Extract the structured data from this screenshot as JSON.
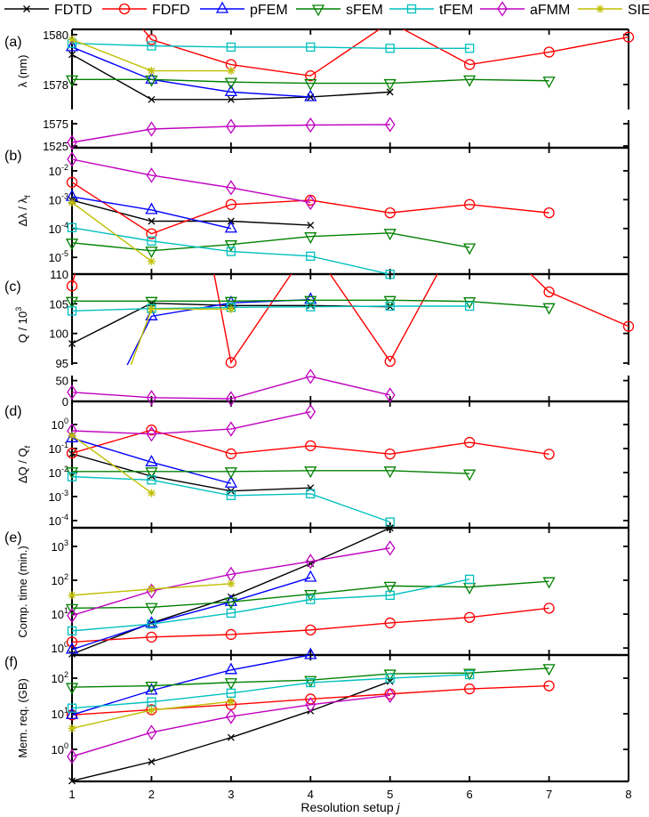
{
  "chart_data": {
    "type": "line",
    "x": [
      1,
      2,
      3,
      4,
      5,
      6,
      7,
      8
    ],
    "xlim": [
      1,
      8
    ],
    "xticks": [
      "1",
      "2",
      "3",
      "4",
      "5",
      "6",
      "7",
      "8"
    ],
    "xlabel": "Resolution setup ",
    "xlabel_var": "j",
    "legend_position": "top",
    "series_meta": [
      {
        "name": "FDTD",
        "color": "#000000",
        "marker": "x"
      },
      {
        "name": "FDFD",
        "color": "#ff0000",
        "marker": "circle"
      },
      {
        "name": "pFEM",
        "color": "#0000ff",
        "marker": "triangle-up"
      },
      {
        "name": "sFEM",
        "color": "#008000",
        "marker": "triangle-down"
      },
      {
        "name": "tFEM",
        "color": "#00bfbf",
        "marker": "square"
      },
      {
        "name": "aFMM",
        "color": "#bf00bf",
        "marker": "diamond"
      },
      {
        "name": "SIE",
        "color": "#bfbf00",
        "marker": "asterisk"
      }
    ],
    "panels": [
      {
        "label": "(a)",
        "ylabel": {
          "main": "λ (nm)"
        },
        "scale": "linear",
        "segments": [
          {
            "ylim": [
              1577,
              1580.21
            ],
            "yticks": [
              1578,
              1580
            ],
            "series": [
              "FDTD",
              "FDFD",
              "pFEM",
              "sFEM",
              "tFEM",
              "SIE"
            ]
          },
          {
            "ylim": [
              1521,
              1583
            ],
            "yticks": [
              1525,
              1575
            ],
            "series": [
              "aFMM"
            ]
          }
        ],
        "values": {
          "FDTD": [
            1579.2,
            1577.4,
            1577.4,
            1577.5,
            1577.7,
            null,
            null,
            null
          ],
          "FDFD": [
            1583.7,
            1579.8,
            1578.8,
            1578.35,
            1580.5,
            1578.8,
            1579.3,
            1579.9
          ],
          "pFEM": [
            1579.5,
            1578.2,
            1577.7,
            1577.5,
            null,
            null,
            null,
            null
          ],
          "sFEM": [
            1578.2,
            1578.2,
            1578.1,
            1578.05,
            1578.05,
            1578.2,
            1578.15,
            null
          ],
          "tFEM": [
            1579.65,
            1579.55,
            1579.5,
            1579.5,
            1579.45,
            1579.45,
            null,
            null
          ],
          "aFMM": [
            1533,
            1563,
            1569,
            1572,
            1573,
            null,
            null,
            null
          ],
          "SIE": [
            1579.8,
            1578.55,
            1578.55,
            null,
            null,
            null,
            null,
            null
          ]
        }
      },
      {
        "label": "(b)",
        "ylabel": {
          "main": "Δλ / λ",
          "sub": "f"
        },
        "scale": "log",
        "segments": [
          {
            "ylim": [
              2.63e-06,
              0.063
            ],
            "yticks": [
              -5,
              -4,
              -3,
              -2
            ],
            "series": [
              "FDTD",
              "FDFD",
              "pFEM",
              "sFEM",
              "tFEM",
              "aFMM",
              "SIE"
            ]
          }
        ],
        "values": {
          "FDTD": [
            0.00095,
            0.00018,
            0.00018,
            0.00013,
            null,
            null,
            null,
            null
          ],
          "FDFD": [
            0.004,
            6.6e-05,
            0.00068,
            0.00096,
            0.00035,
            0.00068,
            0.00035,
            null
          ],
          "pFEM": [
            0.00126,
            0.00044,
            0.0001,
            null,
            null,
            null,
            null,
            null
          ],
          "sFEM": [
            3.2e-05,
            1.7e-05,
            2.8e-05,
            5.3e-05,
            7e-05,
            2.2e-05,
            null,
            null
          ],
          "tFEM": [
            0.000107,
            3.7e-05,
            1.6e-05,
            1.1e-05,
            2.6e-06,
            null,
            null,
            null
          ],
          "aFMM": [
            0.025,
            0.007,
            0.0026,
            0.0008,
            null,
            null,
            null,
            null
          ],
          "SIE": [
            0.0008,
            7.3e-06,
            null,
            null,
            null,
            null,
            null,
            null
          ]
        }
      },
      {
        "label": "(c)",
        "ylabel": {
          "main": "Q / 10",
          "sup": "3"
        },
        "scale": "linear",
        "segments": [
          {
            "ylim": [
              94.7,
              110
            ],
            "yticks": [
              95,
              100,
              105,
              110
            ],
            "series": [
              "FDTD",
              "FDFD",
              "pFEM",
              "sFEM",
              "tFEM",
              "SIE"
            ]
          },
          {
            "ylim": [
              0,
              62
            ],
            "yticks": [
              0,
              50
            ],
            "series": [
              "aFMM"
            ]
          }
        ],
        "values": {
          "FDTD": [
            98.3,
            105.1,
            104.7,
            104.7,
            104.5,
            null,
            null,
            null
          ],
          "FDFD": [
            108,
            165,
            95.1,
            114.8,
            95.3,
            120,
            107,
            101.2
          ],
          "pFEM": [
            76,
            102.9,
            105.15,
            105.7,
            null,
            null,
            null,
            null
          ],
          "sFEM": [
            105.45,
            105.45,
            105.45,
            105.6,
            105.6,
            105.4,
            104.4,
            null
          ],
          "tFEM": [
            103.8,
            104.2,
            104.4,
            104.5,
            104.6,
            104.6,
            null,
            null
          ],
          "aFMM": [
            22,
            9,
            6.5,
            60,
            15,
            null,
            null,
            null
          ],
          "SIE": [
            67.7,
            104.1,
            104.1,
            null,
            null,
            null,
            null,
            null
          ]
        }
      },
      {
        "label": "(d)",
        "ylabel": {
          "main": "ΔQ / Q",
          "sub": "f"
        },
        "scale": "log",
        "segments": [
          {
            "ylim": [
              5e-05,
              9.2
            ],
            "yticks": [
              -4,
              -3,
              -2,
              -1,
              0
            ],
            "series": [
              "FDTD",
              "FDFD",
              "pFEM",
              "sFEM",
              "tFEM",
              "aFMM",
              "SIE"
            ]
          }
        ],
        "values": {
          "FDTD": [
            0.06,
            0.007,
            0.0017,
            0.0023,
            null,
            null,
            null,
            null
          ],
          "FDFD": [
            0.064,
            0.59,
            0.06,
            0.13,
            0.059,
            0.18,
            0.058,
            null
          ],
          "pFEM": [
            0.27,
            0.027,
            0.0035,
            null,
            null,
            null,
            null,
            null
          ],
          "sFEM": [
            0.011,
            0.011,
            0.011,
            0.012,
            0.012,
            0.009,
            null,
            null
          ],
          "tFEM": [
            0.0067,
            0.0049,
            0.0011,
            0.0013,
            8.7e-05,
            null,
            null,
            null
          ],
          "aFMM": [
            0.55,
            0.4,
            0.65,
            3.4,
            null,
            null,
            null,
            null
          ],
          "SIE": [
            0.35,
            0.0014,
            null,
            null,
            null,
            null,
            null,
            null
          ]
        }
      },
      {
        "label": "(e)",
        "ylabel": {
          "main": "Comp. time (min.)"
        },
        "scale": "log",
        "segments": [
          {
            "ylim": [
              0.62,
              3550
            ],
            "yticks": [
              0,
              1,
              2,
              3
            ],
            "series": [
              "FDTD",
              "FDFD",
              "pFEM",
              "sFEM",
              "tFEM",
              "aFMM",
              "SIE"
            ]
          }
        ],
        "values": {
          "FDTD": [
            0.66,
            5.5,
            32,
            310,
            3500,
            null,
            null,
            null
          ],
          "FDFD": [
            1.5,
            2.1,
            2.5,
            3.4,
            5.5,
            8,
            15,
            null
          ],
          "pFEM": [
            0.9,
            5.3,
            23,
            120,
            null,
            null,
            null,
            null
          ],
          "sFEM": [
            15,
            16,
            23,
            39,
            68,
            63,
            93,
            null
          ],
          "tFEM": [
            3.2,
            5.1,
            10.7,
            27,
            36,
            107,
            null,
            null
          ],
          "aFMM": [
            9.1,
            48,
            150,
            360,
            890,
            null,
            null,
            null
          ],
          "SIE": [
            36,
            55,
            79,
            null,
            null,
            null,
            null,
            null
          ]
        }
      },
      {
        "label": "(f)",
        "ylabel": {
          "main": "Mem. req. (GB)"
        },
        "scale": "log",
        "segments": [
          {
            "ylim": [
              0.126,
              447
            ],
            "yticks": [
              0,
              1,
              2
            ],
            "series": [
              "FDTD",
              "FDFD",
              "pFEM",
              "sFEM",
              "tFEM",
              "aFMM",
              "SIE"
            ]
          }
        ],
        "values": {
          "FDTD": [
            0.13,
            0.45,
            2.15,
            12,
            81,
            null,
            null,
            null
          ],
          "FDFD": [
            9.3,
            13,
            18,
            26,
            36,
            50,
            61,
            null
          ],
          "pFEM": [
            9.3,
            45,
            170,
            450,
            null,
            null,
            null,
            null
          ],
          "sFEM": [
            56,
            61,
            76,
            88,
            133,
            140,
            190,
            null
          ],
          "tFEM": [
            14.4,
            21.6,
            38,
            75,
            100,
            126,
            null,
            null
          ],
          "aFMM": [
            0.63,
            3.0,
            8.4,
            18,
            33,
            null,
            null,
            null
          ],
          "SIE": [
            3.9,
            12.6,
            22,
            null,
            null,
            null,
            null,
            null
          ]
        }
      }
    ]
  }
}
